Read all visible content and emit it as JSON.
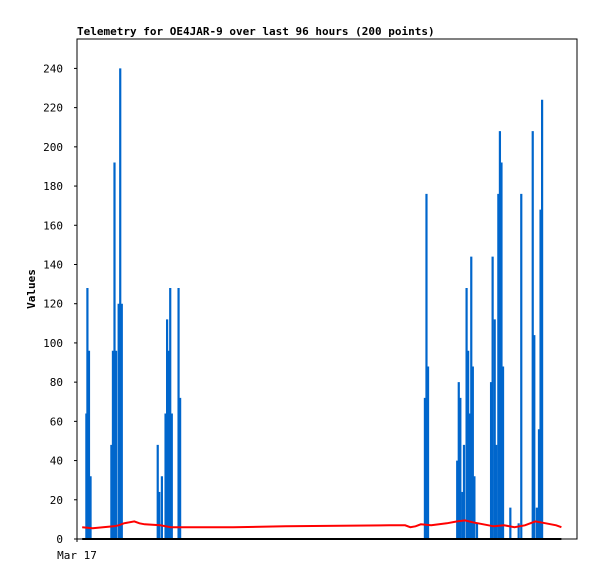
{
  "chart_data": {
    "type": "line",
    "title": "Telemetry for OE4JAR-9 over last 96 hours (200 points)",
    "xlabel": "",
    "ylabel": "Values",
    "x_tick_labels": [
      "Mar 17"
    ],
    "ylim": [
      0,
      255
    ],
    "yticks": [
      0,
      20,
      40,
      60,
      80,
      100,
      120,
      140,
      160,
      180,
      200,
      220,
      240
    ],
    "grid": false,
    "legend": "none",
    "colors": {
      "blue": "#0066cc",
      "red": "#ff0000",
      "black": "#000000"
    },
    "x_range": [
      0,
      96
    ],
    "series": [
      {
        "color": "#0066cc",
        "style": "spikes",
        "points": [
          [
            1.8,
            64
          ],
          [
            2.0,
            128
          ],
          [
            2.3,
            96
          ],
          [
            2.6,
            32
          ],
          [
            6.6,
            48
          ],
          [
            6.9,
            96
          ],
          [
            7.2,
            192
          ],
          [
            7.5,
            96
          ],
          [
            8.0,
            120
          ],
          [
            8.3,
            240
          ],
          [
            8.6,
            120
          ],
          [
            15.5,
            48
          ],
          [
            15.8,
            24
          ],
          [
            16.3,
            32
          ],
          [
            17.0,
            64
          ],
          [
            17.3,
            112
          ],
          [
            17.6,
            96
          ],
          [
            17.9,
            128
          ],
          [
            18.2,
            64
          ],
          [
            19.5,
            128
          ],
          [
            19.8,
            72
          ],
          [
            66.8,
            72
          ],
          [
            67.1,
            176
          ],
          [
            67.4,
            88
          ],
          [
            73.0,
            40
          ],
          [
            73.3,
            80
          ],
          [
            73.6,
            72
          ],
          [
            74.0,
            24
          ],
          [
            74.3,
            48
          ],
          [
            74.8,
            128
          ],
          [
            75.1,
            96
          ],
          [
            75.4,
            64
          ],
          [
            75.7,
            144
          ],
          [
            76.0,
            88
          ],
          [
            76.3,
            32
          ],
          [
            76.8,
            8
          ],
          [
            79.5,
            80
          ],
          [
            79.8,
            144
          ],
          [
            80.2,
            112
          ],
          [
            80.5,
            48
          ],
          [
            80.9,
            176
          ],
          [
            81.2,
            208
          ],
          [
            81.5,
            192
          ],
          [
            81.8,
            88
          ],
          [
            83.2,
            16
          ],
          [
            84.8,
            8
          ],
          [
            85.3,
            176
          ],
          [
            87.5,
            208
          ],
          [
            87.8,
            104
          ],
          [
            88.3,
            16
          ],
          [
            88.7,
            56
          ],
          [
            89.0,
            168
          ],
          [
            89.3,
            224
          ]
        ]
      },
      {
        "color": "#ff0000",
        "style": "line",
        "points": [
          [
            1.0,
            6
          ],
          [
            3.0,
            5.5
          ],
          [
            5.0,
            6
          ],
          [
            7.0,
            6.5
          ],
          [
            8.0,
            7
          ],
          [
            9.0,
            8
          ],
          [
            11.0,
            9
          ],
          [
            12.0,
            8
          ],
          [
            13.0,
            7.5
          ],
          [
            16.0,
            7
          ],
          [
            18.0,
            6
          ],
          [
            30.0,
            6
          ],
          [
            40.0,
            6.5
          ],
          [
            60.0,
            7
          ],
          [
            63.0,
            7
          ],
          [
            64.0,
            6
          ],
          [
            65.0,
            6.5
          ],
          [
            66.0,
            7.5
          ],
          [
            68.0,
            7
          ],
          [
            71.0,
            8
          ],
          [
            73.0,
            9
          ],
          [
            74.5,
            9.5
          ],
          [
            76.0,
            8.5
          ],
          [
            78.0,
            7.5
          ],
          [
            80.0,
            6.5
          ],
          [
            82.0,
            7
          ],
          [
            84.0,
            6
          ],
          [
            86.0,
            7
          ],
          [
            88.0,
            9
          ],
          [
            90.0,
            8
          ],
          [
            92.0,
            7
          ],
          [
            93.0,
            6
          ]
        ]
      },
      {
        "color": "#000000",
        "style": "line",
        "points": [
          [
            1.0,
            0
          ],
          [
            93.0,
            0
          ]
        ]
      }
    ]
  }
}
